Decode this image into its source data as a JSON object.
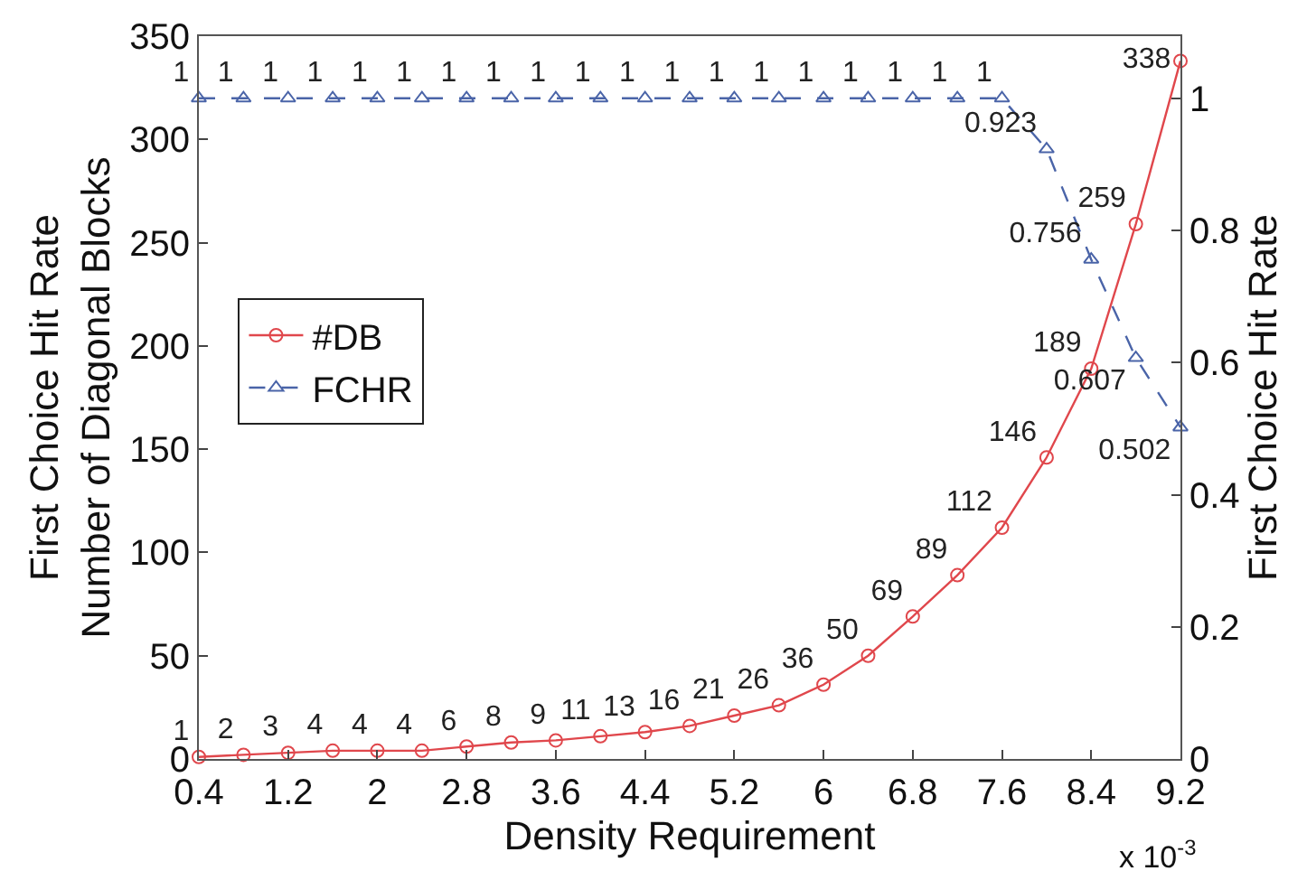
{
  "chart_data": {
    "type": "line",
    "xlabel": "Density Requirement",
    "ylabel": "First Choice Hit Rate\nNumber of Diagonal Blocks",
    "y2label": "First Choice Hit Rate",
    "x": [
      0.4,
      0.8,
      1.2,
      1.6,
      2,
      2.4,
      2.8,
      3.2,
      3.6,
      4,
      4.4,
      4.8,
      5.2,
      5.6,
      6,
      6.4,
      6.8,
      7.2,
      7.6,
      8,
      8.4,
      8.8,
      9.2
    ],
    "series": [
      {
        "name": "#DB",
        "color": "#e0474c",
        "marker": "circle",
        "line_style": "solid",
        "values": [
          1,
          2,
          3,
          4,
          4,
          4,
          6,
          8,
          9,
          11,
          13,
          16,
          21,
          26,
          36,
          50,
          69,
          89,
          112,
          146,
          189,
          259,
          338
        ]
      },
      {
        "name": "FCHR",
        "color": "#4a64a8",
        "marker": "triangle",
        "line_style": "dashed",
        "axis": "y2",
        "values": [
          1,
          1,
          1,
          1,
          1,
          1,
          1,
          1,
          1,
          1,
          1,
          1,
          1,
          1,
          1,
          1,
          1,
          1,
          1,
          0.923,
          0.756,
          0.607,
          0.502
        ]
      }
    ],
    "xlim": [
      0.4,
      9.2
    ],
    "xticks": [
      0.4,
      1.2,
      2,
      2.8,
      3.6,
      4.4,
      5.2,
      6,
      6.8,
      7.6,
      8.4,
      9.2
    ],
    "ylim": [
      0,
      350
    ],
    "yticks": [
      0,
      50,
      100,
      150,
      200,
      250,
      300,
      350
    ],
    "y2lim": [
      0,
      1.094
    ],
    "y2ticks": [
      0,
      0.2,
      0.4,
      0.6,
      0.8,
      1
    ],
    "data_labels": true,
    "grid": false,
    "legend": "left",
    "annotations": [
      "x 10$^{-3}$"
    ]
  }
}
